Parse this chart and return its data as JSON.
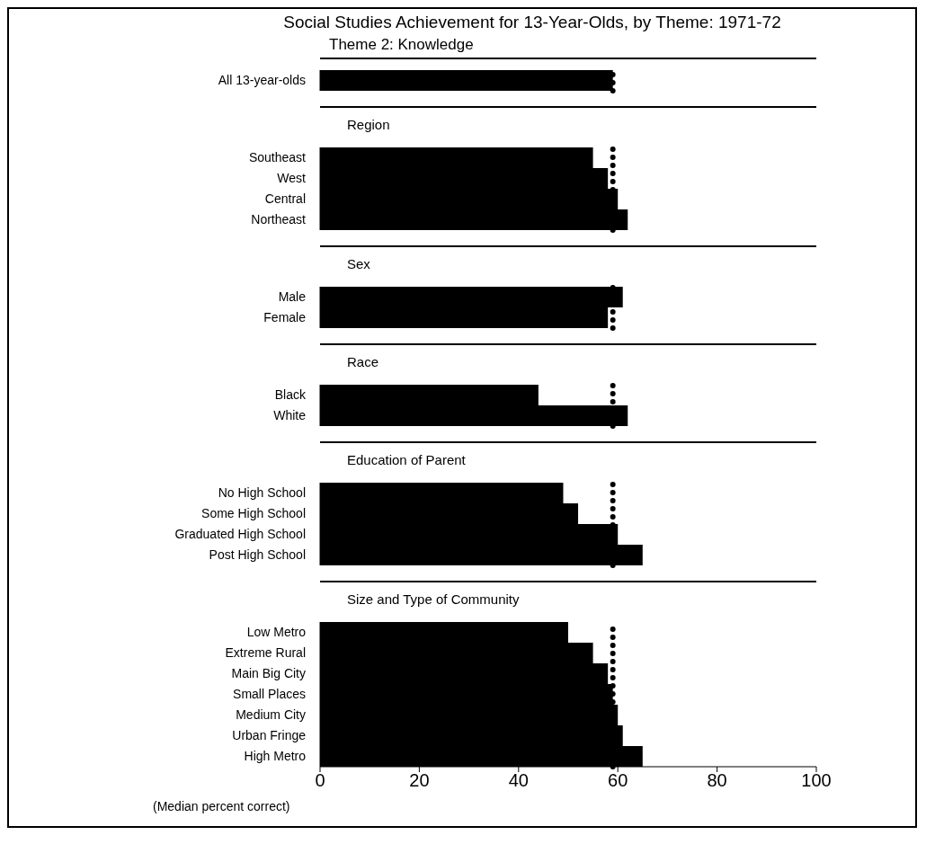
{
  "chart_data": [
    {
      "type": "bar",
      "orientation": "horizontal",
      "title": "Social Studies Achievement for 13-Year-Olds, by Theme: 1971-72",
      "subtitle": "Theme 2: Knowledge",
      "categories": [
        "All 13-year-olds"
      ],
      "values": [
        59
      ],
      "color": "#000000",
      "xlim": [
        0,
        100
      ],
      "xticks": [
        0,
        20,
        40,
        60,
        80,
        100
      ],
      "ref_lines": [
        {
          "axis": "x",
          "value": 59,
          "line_style": "dotted",
          "color": "#000000"
        }
      ],
      "tick_labels": "y"
    },
    {
      "type": "bar",
      "orientation": "horizontal",
      "title": "Region",
      "categories": [
        "Southeast",
        "West",
        "Central",
        "Northeast"
      ],
      "values": [
        55,
        58,
        60,
        62
      ],
      "color": "#000000",
      "xlim": [
        0,
        100
      ],
      "xticks": [
        0,
        20,
        40,
        60,
        80,
        100
      ],
      "ref_lines": [
        {
          "axis": "x",
          "value": 59,
          "line_style": "dotted",
          "color": "#000000"
        }
      ],
      "tick_labels": "y"
    },
    {
      "type": "bar",
      "orientation": "horizontal",
      "title": "Sex",
      "categories": [
        "Male",
        "Female"
      ],
      "values": [
        61,
        58
      ],
      "color": "#000000",
      "xlim": [
        0,
        100
      ],
      "xticks": [
        0,
        20,
        40,
        60,
        80,
        100
      ],
      "ref_lines": [
        {
          "axis": "x",
          "value": 59,
          "line_style": "dotted",
          "color": "#000000"
        }
      ],
      "tick_labels": "y"
    },
    {
      "type": "bar",
      "orientation": "horizontal",
      "title": "Race",
      "categories": [
        "Black",
        "White"
      ],
      "values": [
        44,
        62
      ],
      "color": "#000000",
      "xlim": [
        0,
        100
      ],
      "xticks": [
        0,
        20,
        40,
        60,
        80,
        100
      ],
      "ref_lines": [
        {
          "axis": "x",
          "value": 59,
          "line_style": "dotted",
          "color": "#000000"
        }
      ],
      "tick_labels": "y"
    },
    {
      "type": "bar",
      "orientation": "horizontal",
      "title": "Education of Parent",
      "categories": [
        "No High School",
        "Some High School",
        "Graduated High School",
        "Post High School"
      ],
      "values": [
        49,
        52,
        60,
        65
      ],
      "color": "#000000",
      "xlim": [
        0,
        100
      ],
      "xticks": [
        0,
        20,
        40,
        60,
        80,
        100
      ],
      "ref_lines": [
        {
          "axis": "x",
          "value": 59,
          "line_style": "dotted",
          "color": "#000000"
        }
      ],
      "tick_labels": "y"
    },
    {
      "type": "bar",
      "orientation": "horizontal",
      "title": "Size and Type of Community",
      "xlabel": "(Median percent correct)",
      "categories": [
        "Low Metro",
        "Extreme Rural",
        "Main Big City",
        "Small Places",
        "Medium City",
        "Urban Fringe",
        "High Metro"
      ],
      "values": [
        50,
        55,
        58,
        59,
        60,
        61,
        65
      ],
      "color": "#000000",
      "xlim": [
        0,
        100
      ],
      "xticks": [
        0,
        20,
        40,
        60,
        80,
        100
      ],
      "ref_lines": [
        {
          "axis": "x",
          "value": 59,
          "line_style": "dotted",
          "color": "#000000"
        }
      ]
    }
  ]
}
